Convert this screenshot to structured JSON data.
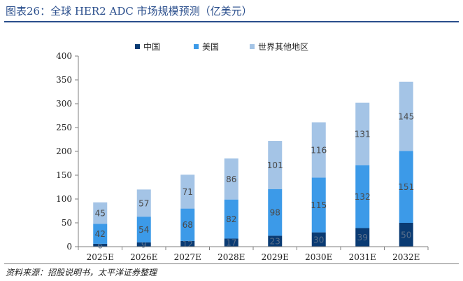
{
  "title": "图表26：全球 HER2 ADC 市场规模预测（亿美元）",
  "source": "资料来源：招股说明书，太平洋证券整理",
  "colors": {
    "china": "#0a3b73",
    "us": "#3c9ae8",
    "rest": "#a4c4e6"
  },
  "chart_data": {
    "type": "bar",
    "stacked": true,
    "categories": [
      "2025E",
      "2026E",
      "2027E",
      "2028E",
      "2029E",
      "2030E",
      "2031E",
      "2032E"
    ],
    "series": [
      {
        "name": "中国",
        "values": [
          6,
          9,
          12,
          17,
          23,
          30,
          39,
          50
        ]
      },
      {
        "name": "美国",
        "values": [
          42,
          54,
          68,
          82,
          98,
          115,
          132,
          151
        ]
      },
      {
        "name": "世界其他地区",
        "values": [
          45,
          57,
          71,
          86,
          101,
          116,
          131,
          145
        ]
      }
    ],
    "ylim": [
      0,
      400
    ],
    "yticks": [
      0,
      50,
      100,
      150,
      200,
      250,
      300,
      350,
      400
    ],
    "legend_position": "top",
    "grid": false
  }
}
